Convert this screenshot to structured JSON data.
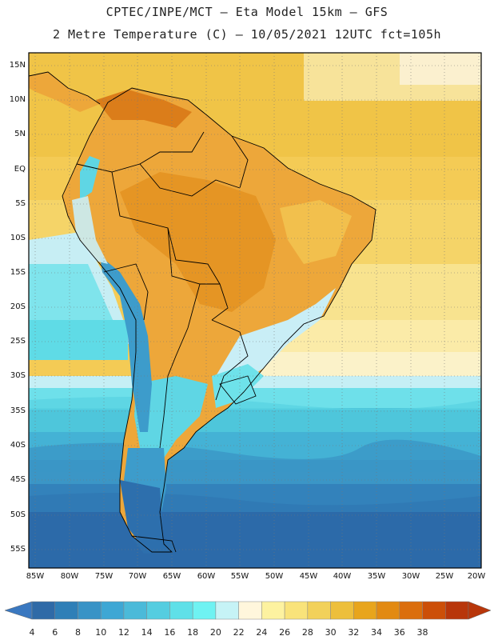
{
  "header": {
    "line1": "CPTEC/INPE/MCT –  Eta Model 15km – GFS",
    "line2": "2 Metre Temperature (C) – 10/05/2021 12UTC fct=105h"
  },
  "map": {
    "region": "South America",
    "lat_labels": [
      "15N",
      "10N",
      "5N",
      "EQ",
      "5S",
      "10S",
      "15S",
      "20S",
      "25S",
      "30S",
      "35S",
      "40S",
      "45S",
      "50S",
      "55S"
    ],
    "lon_labels": [
      "85W",
      "80W",
      "75W",
      "70W",
      "65W",
      "60W",
      "55W",
      "50W",
      "45W",
      "40W",
      "35W",
      "30W",
      "25W",
      "20W"
    ]
  },
  "legend": {
    "levels": [
      "4",
      "6",
      "8",
      "10",
      "12",
      "14",
      "16",
      "18",
      "20",
      "22",
      "24",
      "26",
      "28",
      "30",
      "32",
      "34",
      "36",
      "38"
    ],
    "colors": [
      "#2f6aa7",
      "#2f7fb7",
      "#3893c6",
      "#3ea7d4",
      "#4bbad9",
      "#55cde0",
      "#5fe0e8",
      "#6ff2f2",
      "#c6f3f6",
      "#fff6dc",
      "#fdf2a0",
      "#f9e37a",
      "#f2d15a",
      "#edbf3c",
      "#e8a51c",
      "#e28a12",
      "#db6e0c",
      "#cc4f08",
      "#b8360a"
    ],
    "under_color": "#3a78c0",
    "over_color": "#b8360a"
  }
}
